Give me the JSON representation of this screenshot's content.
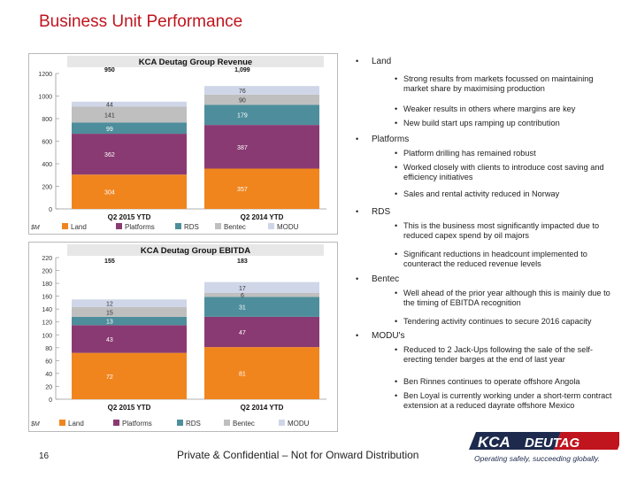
{
  "slide": {
    "title": "Business Unit Performance",
    "footer": "Private & Confidential – Not for Onward Distribution",
    "page_number": "16",
    "logo": {
      "text_left": "KCA",
      "text_right": "DEUTAG",
      "tagline": "Operating safely, succeeding globally."
    }
  },
  "colors": {
    "Land": "#f0851e",
    "Platforms": "#8a3a72",
    "RDS": "#4e8e9c",
    "Bentec": "#bfbfbf",
    "MODU": "#cfd6e8",
    "title": "#c0141e"
  },
  "chart_data": [
    {
      "type": "bar",
      "stacked": true,
      "title": "KCA Deutag Group Revenue",
      "unit_label": "$M",
      "categories": [
        "Q2 2015 YTD",
        "Q2 2014 YTD"
      ],
      "totals": [
        "950",
        "1,099"
      ],
      "ylim": [
        0,
        1200
      ],
      "yticks": [
        "0",
        "200",
        "400",
        "600",
        "800",
        "1000",
        "1200"
      ],
      "series": [
        {
          "name": "Land",
          "values": [
            304,
            357
          ],
          "labels": [
            "304",
            "357"
          ]
        },
        {
          "name": "Platforms",
          "values": [
            362,
            387
          ],
          "labels": [
            "362",
            "387"
          ]
        },
        {
          "name": "RDS",
          "values": [
            99,
            179
          ],
          "labels": [
            "99",
            "179"
          ]
        },
        {
          "name": "Bentec",
          "values": [
            141,
            90
          ],
          "labels": [
            "141",
            "90"
          ]
        },
        {
          "name": "MODU",
          "values": [
            44,
            76
          ],
          "labels": [
            "44",
            "76"
          ]
        }
      ],
      "legend": [
        "Land",
        "Platforms",
        "RDS",
        "Bentec",
        "MODU"
      ]
    },
    {
      "type": "bar",
      "stacked": true,
      "title": "KCA Deutag Group EBITDA",
      "unit_label": "$M",
      "categories": [
        "Q2 2015 YTD",
        "Q2 2014 YTD"
      ],
      "totals": [
        "155",
        "183"
      ],
      "ylim": [
        0,
        220
      ],
      "yticks": [
        "0",
        "20",
        "40",
        "60",
        "80",
        "100",
        "120",
        "140",
        "160",
        "180",
        "200",
        "220"
      ],
      "series": [
        {
          "name": "Land",
          "values": [
            72,
            81
          ],
          "labels": [
            "72",
            "81"
          ]
        },
        {
          "name": "Platforms",
          "values": [
            43,
            47
          ],
          "labels": [
            "43",
            "47"
          ]
        },
        {
          "name": "RDS",
          "values": [
            13,
            31
          ],
          "labels": [
            "13",
            "31"
          ]
        },
        {
          "name": "Bentec",
          "values": [
            15,
            6
          ],
          "labels": [
            "15",
            "6"
          ]
        },
        {
          "name": "MODU",
          "values": [
            12,
            17
          ],
          "labels": [
            "12",
            "17"
          ]
        }
      ],
      "legend": [
        "Land",
        "Platforms",
        "RDS",
        "Bentec",
        "MODU"
      ]
    }
  ],
  "bullets": [
    {
      "heading": "Land",
      "items": [
        "Strong results from markets focussed on maintaining market share by maximising production",
        "Weaker results in others where margins are key",
        "New build start ups ramping up contribution"
      ]
    },
    {
      "heading": "Platforms",
      "items": [
        "Platform drilling has remained robust",
        "Worked closely with clients to introduce cost saving and efficiency initiatives",
        "Sales and rental activity reduced in Norway"
      ]
    },
    {
      "heading": "RDS",
      "items": [
        "This is the business most significantly impacted due to reduced capex spend by oil majors",
        "Significant reductions in headcount implemented to counteract the reduced revenue levels"
      ]
    },
    {
      "heading": "Bentec",
      "items": [
        "Well ahead of the prior year although this is mainly due to the timing of EBITDA recognition",
        "Tendering activity continues to secure 2016 capacity"
      ]
    },
    {
      "heading": "MODU's",
      "items": [
        "Reduced to 2 Jack-Ups following the sale of the self-erecting tender barges at the end of last year",
        "Ben Rinnes continues to operate offshore Angola",
        "Ben Loyal is currently working under a short-term contract extension at a reduced dayrate offshore Mexico"
      ]
    }
  ]
}
